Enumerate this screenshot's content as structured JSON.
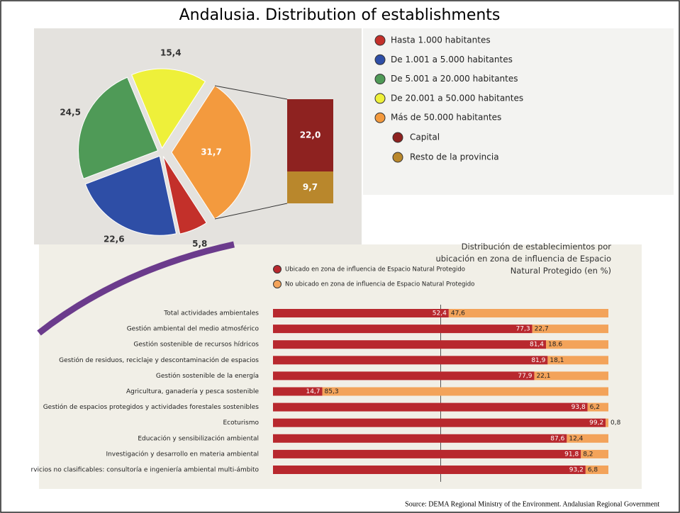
{
  "slide_title": "Andalusia. Distribution of establishments",
  "source": "Source: DEMA Regional Ministry of the Environment. Andalusian Regional Government",
  "chart_data": [
    {
      "type": "pie",
      "categories": [
        "Hasta 1.000 habitantes",
        "De 1.001 a 5.000 habitantes",
        "De 5.001 a 20.000 habitantes",
        "De 20.001 a 50.000 habitantes",
        "Más de 50.000 habitantes"
      ],
      "values": [
        5.8,
        22.6,
        24.5,
        15.4,
        31.7
      ],
      "value_labels": [
        "5,8",
        "22,6",
        "24,5",
        "15,4",
        "31,7"
      ],
      "colors": [
        "#c3302a",
        "#2e4ea6",
        "#4f9a57",
        "#eef03a",
        "#f39a3e"
      ],
      "breakdown": {
        "categories": [
          "Capital",
          "Resto de la provincia"
        ],
        "values": [
          22.0,
          9.7
        ],
        "value_labels": [
          "22,0",
          "9,7"
        ],
        "colors": [
          "#8e2220",
          "#b9872c"
        ]
      }
    },
    {
      "type": "bar",
      "orientation": "horizontal",
      "stacked": true,
      "title": "Distribución de establecimientos por ubicación en zona de influencia de Espacio Natural Protegido (en %)",
      "categories": [
        "Total actividades ambientales",
        "Gestión ambiental del medio atmosférico",
        "Gestión sostenible de recursos hídricos",
        "Gestión de residuos, reciclaje y descontaminación de espacios",
        "Gestión sostenible de la energía",
        "Agricultura, ganadería y pesca sostenible",
        "Gestión de espacios protegidos y actividades forestales sostenibles",
        "Ecoturismo",
        "Educación y sensibilización ambiental",
        "Investigación y desarrollo en materia ambiental",
        "rvicios no clasificables: consultoría e ingeniería ambiental multi-ámbito"
      ],
      "series": [
        {
          "name": "Ubicado en zona de influencia de Espacio Natural Protegido",
          "color": "#b8282e",
          "values": [
            52.4,
            77.3,
            81.4,
            81.9,
            77.9,
            14.7,
            93.8,
            99.2,
            87.6,
            91.8,
            93.2
          ],
          "value_labels": [
            "52,4",
            "77,3",
            "81,4",
            "81,9",
            "77,9",
            "14,7",
            "93,8",
            "99,2",
            "87,6",
            "91,8",
            "93,2"
          ]
        },
        {
          "name": "No ubicado en zona de influencia de Espacio Natural Protegido",
          "color": "#f3a35a",
          "values": [
            47.6,
            22.7,
            18.6,
            18.1,
            22.1,
            85.3,
            6.2,
            0.8,
            12.4,
            8.2,
            6.8
          ],
          "value_labels": [
            "47,6",
            "22,7",
            "18.6",
            "18,1",
            "22,1",
            "85,3",
            "6,2",
            "0,8",
            "12,4",
            "8,2",
            "6,8"
          ]
        }
      ],
      "xlim": [
        0,
        100
      ]
    }
  ]
}
